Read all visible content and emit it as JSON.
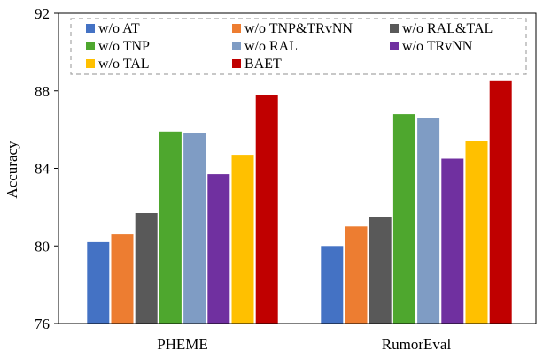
{
  "chart_data": {
    "type": "bar",
    "ylabel": "Accuracy",
    "ylim": [
      76,
      92
    ],
    "yticks": [
      76,
      80,
      84,
      88,
      92
    ],
    "grid": false,
    "legend_position": "top",
    "categories": [
      "PHEME",
      "RumorEval"
    ],
    "series": [
      {
        "name": "w/o AT",
        "color": "#4472C4",
        "values": [
          80.2,
          80.0
        ]
      },
      {
        "name": "w/o TNP&TRvNN",
        "color": "#ED7D31",
        "values": [
          80.6,
          81.0
        ]
      },
      {
        "name": "w/o RAL&TAL",
        "color": "#595959",
        "values": [
          81.7,
          81.5
        ]
      },
      {
        "name": "w/o TNP",
        "color": "#4EA72E",
        "values": [
          85.9,
          86.8
        ]
      },
      {
        "name": "w/o RAL",
        "color": "#7F9CC4",
        "values": [
          85.8,
          86.6
        ]
      },
      {
        "name": "w/o TRvNN",
        "color": "#7030A0",
        "values": [
          83.7,
          84.5
        ]
      },
      {
        "name": "w/o TAL",
        "color": "#FFC000",
        "values": [
          84.7,
          85.4
        ]
      },
      {
        "name": "BAET",
        "color": "#C00000",
        "values": [
          87.8,
          88.5
        ]
      }
    ]
  }
}
